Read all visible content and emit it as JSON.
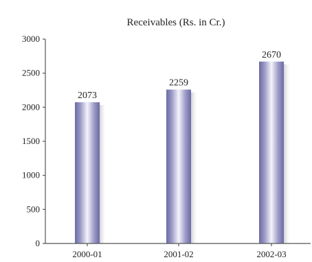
{
  "chart_data": {
    "type": "bar",
    "title": "Receivables (Rs. in Cr.)",
    "xlabel": "",
    "ylabel": "",
    "categories": [
      "2000-01",
      "2001-02",
      "2002-03"
    ],
    "values": [
      2073,
      2259,
      2670
    ],
    "data_labels": [
      "2073",
      "2259",
      "2670"
    ],
    "ylim": [
      0,
      3000
    ],
    "yticks": [
      0,
      500,
      1000,
      1500,
      2000,
      2500,
      3000
    ],
    "ytick_labels": [
      "0",
      "500",
      "1000",
      "1500",
      "2000",
      "2500",
      "3000"
    ],
    "grid": false,
    "colors": {
      "bar_dark": "#6b6aa5",
      "bar_light": "#f4f3fb",
      "shadow": "#d9d9de"
    }
  }
}
